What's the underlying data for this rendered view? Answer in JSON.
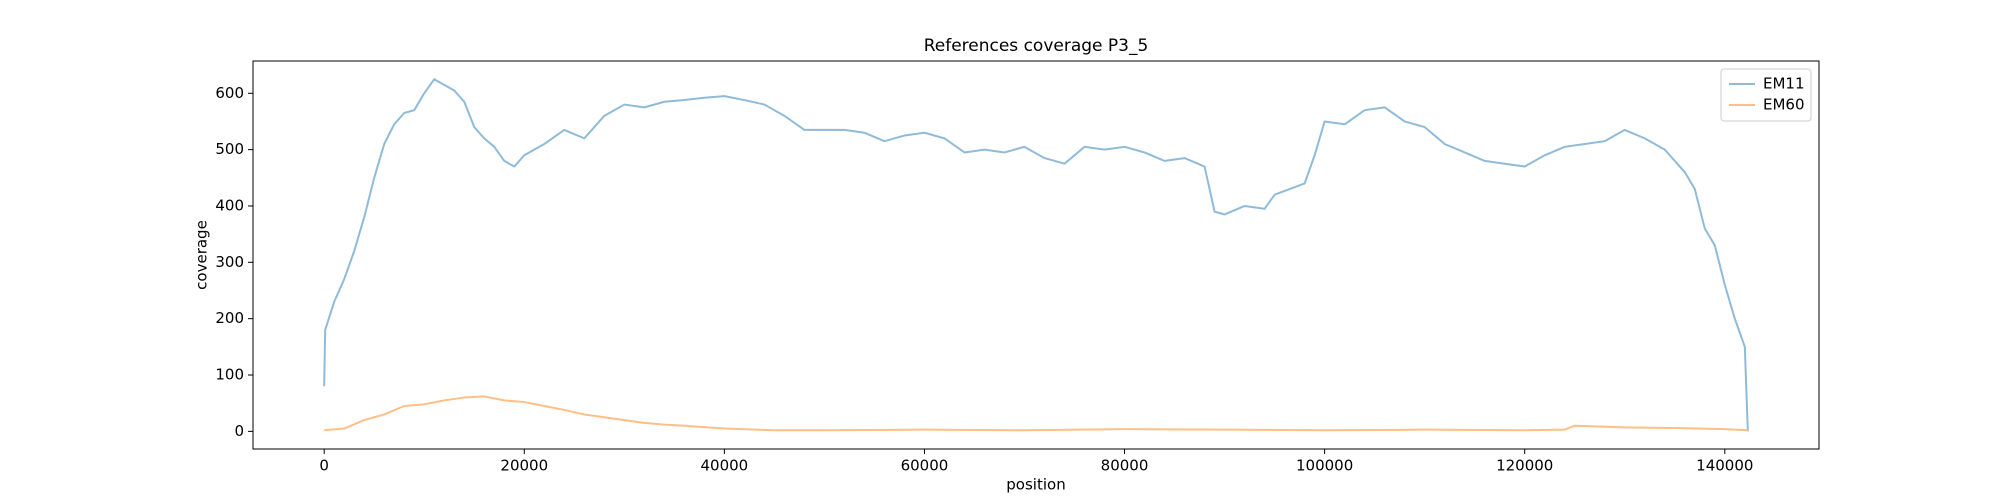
{
  "chart_data": {
    "type": "line",
    "title": "References coverage P3_5",
    "xlabel": "position",
    "ylabel": "coverage",
    "xlim": [
      -7115,
      149415
    ],
    "ylim": [
      -31.3,
      657.3
    ],
    "xticks": [
      0,
      20000,
      40000,
      60000,
      80000,
      100000,
      120000,
      140000
    ],
    "yticks": [
      0,
      100,
      200,
      300,
      400,
      500,
      600
    ],
    "legend": "upper right",
    "series": [
      {
        "name": "EM11",
        "color": "#8fbbd9",
        "x": [
          0,
          100,
          1000,
          2000,
          3000,
          4000,
          5000,
          6000,
          7000,
          8000,
          9000,
          10000,
          11000,
          12000,
          13000,
          14000,
          15000,
          16000,
          17000,
          18000,
          19000,
          20000,
          22000,
          24000,
          26000,
          28000,
          30000,
          32000,
          34000,
          36000,
          38000,
          40000,
          42000,
          44000,
          46000,
          48000,
          50000,
          52000,
          54000,
          56000,
          58000,
          60000,
          62000,
          64000,
          66000,
          68000,
          70000,
          72000,
          74000,
          76000,
          78000,
          80000,
          82000,
          84000,
          86000,
          88000,
          89000,
          90000,
          92000,
          94000,
          95000,
          98000,
          99000,
          100000,
          102000,
          104000,
          106000,
          108000,
          110000,
          112000,
          114000,
          116000,
          118000,
          120000,
          122000,
          124000,
          126000,
          128000,
          130000,
          132000,
          134000,
          136000,
          137000,
          138000,
          139000,
          140000,
          141000,
          142000,
          142300
        ],
        "values": [
          80,
          180,
          230,
          270,
          320,
          380,
          450,
          510,
          545,
          565,
          570,
          600,
          625,
          615,
          605,
          585,
          540,
          520,
          505,
          480,
          470,
          490,
          510,
          535,
          520,
          560,
          580,
          575,
          585,
          588,
          592,
          595,
          588,
          580,
          560,
          535,
          535,
          535,
          530,
          515,
          525,
          530,
          520,
          495,
          500,
          495,
          505,
          485,
          475,
          505,
          500,
          505,
          495,
          480,
          485,
          470,
          390,
          385,
          400,
          395,
          420,
          440,
          490,
          550,
          545,
          570,
          575,
          550,
          540,
          510,
          495,
          480,
          475,
          470,
          490,
          505,
          510,
          515,
          535,
          520,
          500,
          460,
          430,
          360,
          330,
          260,
          200,
          150,
          0
        ]
      },
      {
        "name": "EM60",
        "color": "#ffbf86",
        "x": [
          0,
          2000,
          4000,
          6000,
          8000,
          10000,
          12000,
          14000,
          16000,
          18000,
          20000,
          22000,
          24000,
          26000,
          28000,
          30000,
          32000,
          34000,
          36000,
          40000,
          45000,
          50000,
          60000,
          70000,
          80000,
          90000,
          100000,
          110000,
          120000,
          124000,
          125000,
          130000,
          135000,
          140000,
          142300
        ],
        "values": [
          2,
          5,
          20,
          30,
          45,
          48,
          55,
          60,
          62,
          55,
          52,
          45,
          38,
          30,
          25,
          20,
          15,
          12,
          10,
          5,
          2,
          2,
          3,
          2,
          4,
          3,
          2,
          3,
          2,
          3,
          10,
          7,
          6,
          4,
          2
        ]
      }
    ]
  }
}
